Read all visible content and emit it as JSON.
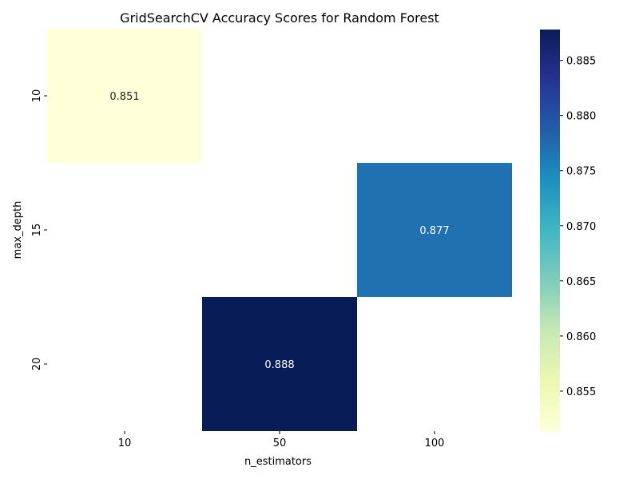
{
  "chart_data": {
    "type": "heatmap",
    "title": "GridSearchCV Accuracy Scores for Random Forest",
    "xlabel": "n_estimators",
    "ylabel": "max_depth",
    "x_categories": [
      "10",
      "50",
      "100"
    ],
    "y_categories": [
      "10",
      "15",
      "20"
    ],
    "cells": [
      {
        "x": "10",
        "y": "10",
        "value": 0.851,
        "label": "0.851"
      },
      {
        "x": "100",
        "y": "15",
        "value": 0.877,
        "label": "0.877"
      },
      {
        "x": "50",
        "y": "20",
        "value": 0.888,
        "label": "0.888"
      }
    ],
    "colormap": "YlGnBu",
    "colorbar": {
      "vmin": 0.8513,
      "vmax": 0.8878,
      "ticks": [
        "0.855",
        "0.860",
        "0.865",
        "0.870",
        "0.875",
        "0.880",
        "0.885"
      ]
    },
    "grid": false,
    "legend": "colorbar-right"
  }
}
